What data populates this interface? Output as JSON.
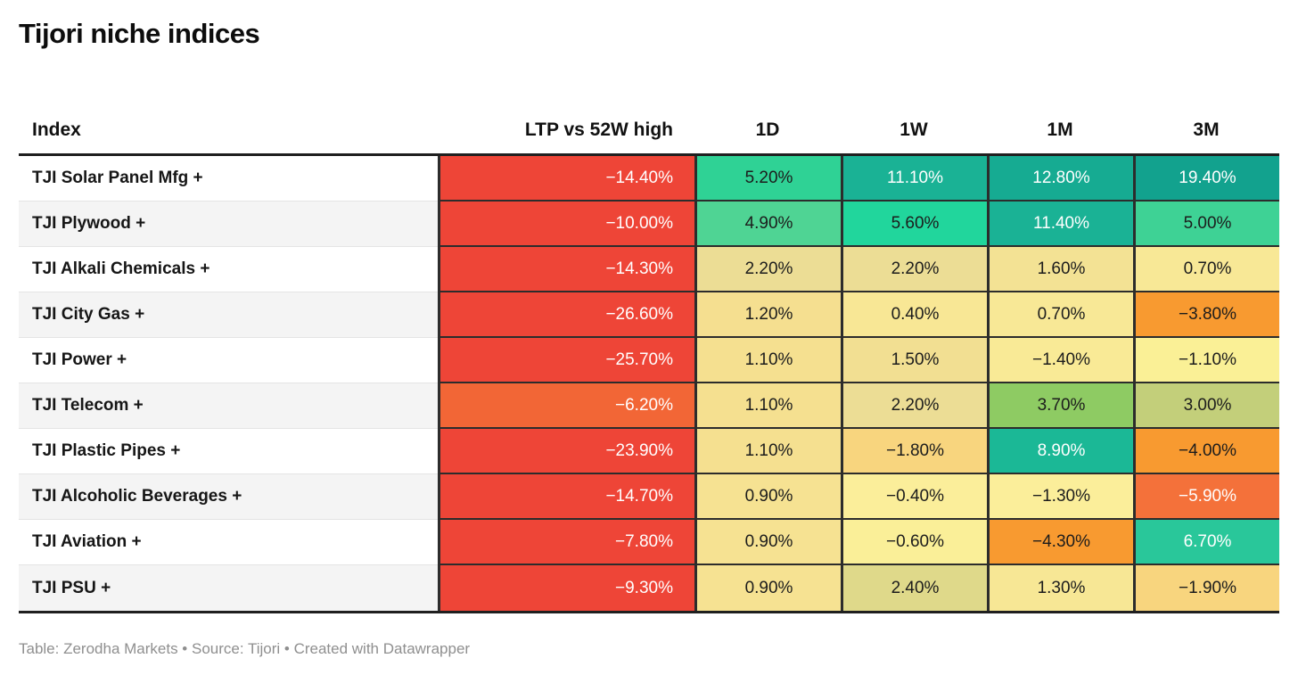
{
  "title": "Tijori niche indices",
  "footer": "Table: Zerodha Markets • Source: Tijori • Created with Datawrapper",
  "colors": {
    "strong_negative": "#ee4537",
    "negative": "#f26636",
    "mild_negative": "#f89a30",
    "neutral": "#f5e090",
    "positive": "#8ecb63",
    "strong_positive": "#1ab295",
    "border_dark": "#2c2c2c"
  },
  "chart_data": {
    "type": "table",
    "title": "Tijori niche indices",
    "columns": [
      "Index",
      "LTP vs 52W high",
      "1D",
      "1W",
      "1M",
      "3M"
    ],
    "header": {
      "index": "Index",
      "ltp": "LTP vs 52W high",
      "d1": "1D",
      "w1": "1W",
      "m1": "1M",
      "m3": "3M"
    },
    "rows": [
      {
        "index": "TJI Solar Panel Mfg +",
        "values": [
          -14.4,
          5.2,
          11.1,
          12.8,
          19.4
        ],
        "cells": [
          {
            "text": "−14.40%",
            "bg": "#ee4537",
            "fg": "#ffffff"
          },
          {
            "text": "5.20%",
            "bg": "#2fd295",
            "fg": "#1c1c1c"
          },
          {
            "text": "11.10%",
            "bg": "#1ab295",
            "fg": "#ffffff"
          },
          {
            "text": "12.80%",
            "bg": "#16ab92",
            "fg": "#ffffff"
          },
          {
            "text": "19.40%",
            "bg": "#12a28e",
            "fg": "#ffffff"
          }
        ]
      },
      {
        "index": "TJI Plywood +",
        "values": [
          -10.0,
          4.9,
          5.6,
          11.4,
          5.0
        ],
        "cells": [
          {
            "text": "−10.00%",
            "bg": "#ee4537",
            "fg": "#ffffff"
          },
          {
            "text": "4.90%",
            "bg": "#4fd494",
            "fg": "#1c1c1c"
          },
          {
            "text": "5.60%",
            "bg": "#21d69c",
            "fg": "#1c1c1c"
          },
          {
            "text": "11.40%",
            "bg": "#1ab295",
            "fg": "#ffffff"
          },
          {
            "text": "5.00%",
            "bg": "#3ed295",
            "fg": "#1c1c1c"
          }
        ]
      },
      {
        "index": "TJI Alkali Chemicals +",
        "values": [
          -14.3,
          2.2,
          2.2,
          1.6,
          0.7
        ],
        "cells": [
          {
            "text": "−14.30%",
            "bg": "#ee4537",
            "fg": "#ffffff"
          },
          {
            "text": "2.20%",
            "bg": "#ecdd95",
            "fg": "#1c1c1c"
          },
          {
            "text": "2.20%",
            "bg": "#ecdd95",
            "fg": "#1c1c1c"
          },
          {
            "text": "1.60%",
            "bg": "#f3e294",
            "fg": "#1c1c1c"
          },
          {
            "text": "0.70%",
            "bg": "#f8e896",
            "fg": "#1c1c1c"
          }
        ]
      },
      {
        "index": "TJI City Gas +",
        "values": [
          -26.6,
          1.2,
          0.4,
          0.7,
          -3.8
        ],
        "cells": [
          {
            "text": "−26.60%",
            "bg": "#ee4537",
            "fg": "#ffffff"
          },
          {
            "text": "1.20%",
            "bg": "#f5df90",
            "fg": "#1c1c1c"
          },
          {
            "text": "0.40%",
            "bg": "#f8e795",
            "fg": "#1c1c1c"
          },
          {
            "text": "0.70%",
            "bg": "#f8e896",
            "fg": "#1c1c1c"
          },
          {
            "text": "−3.80%",
            "bg": "#f89a30",
            "fg": "#1c1c1c"
          }
        ]
      },
      {
        "index": "TJI Power +",
        "values": [
          -25.7,
          1.1,
          1.5,
          -1.4,
          -1.1
        ],
        "cells": [
          {
            "text": "−25.70%",
            "bg": "#ee4537",
            "fg": "#ffffff"
          },
          {
            "text": "1.10%",
            "bg": "#f5e090",
            "fg": "#1c1c1c"
          },
          {
            "text": "1.50%",
            "bg": "#f2df92",
            "fg": "#1c1c1c"
          },
          {
            "text": "−1.40%",
            "bg": "#f9ea96",
            "fg": "#1c1c1c"
          },
          {
            "text": "−1.10%",
            "bg": "#faf096",
            "fg": "#1c1c1c"
          }
        ]
      },
      {
        "index": "TJI Telecom +",
        "values": [
          -6.2,
          1.1,
          2.2,
          3.7,
          3.0
        ],
        "cells": [
          {
            "text": "−6.20%",
            "bg": "#f26636",
            "fg": "#ffffff"
          },
          {
            "text": "1.10%",
            "bg": "#f5e090",
            "fg": "#1c1c1c"
          },
          {
            "text": "2.20%",
            "bg": "#ecdd95",
            "fg": "#1c1c1c"
          },
          {
            "text": "3.70%",
            "bg": "#8ecb63",
            "fg": "#1c1c1c"
          },
          {
            "text": "3.00%",
            "bg": "#c3cf7a",
            "fg": "#1c1c1c"
          }
        ]
      },
      {
        "index": "TJI Plastic Pipes +",
        "values": [
          -23.9,
          1.1,
          -1.8,
          8.9,
          -4.0
        ],
        "cells": [
          {
            "text": "−23.90%",
            "bg": "#ee4537",
            "fg": "#ffffff"
          },
          {
            "text": "1.10%",
            "bg": "#f5e090",
            "fg": "#1c1c1c"
          },
          {
            "text": "−1.80%",
            "bg": "#f8d57e",
            "fg": "#1c1c1c"
          },
          {
            "text": "8.90%",
            "bg": "#1bb896",
            "fg": "#ffffff"
          },
          {
            "text": "−4.00%",
            "bg": "#f89a30",
            "fg": "#1c1c1c"
          }
        ]
      },
      {
        "index": "TJI Alcoholic Beverages +",
        "values": [
          -14.7,
          0.9,
          -0.4,
          -1.3,
          -5.9
        ],
        "cells": [
          {
            "text": "−14.70%",
            "bg": "#ee4537",
            "fg": "#ffffff"
          },
          {
            "text": "0.90%",
            "bg": "#f6e292",
            "fg": "#1c1c1c"
          },
          {
            "text": "−0.40%",
            "bg": "#fbee9a",
            "fg": "#1c1c1c"
          },
          {
            "text": "−1.30%",
            "bg": "#fbee9a",
            "fg": "#1c1c1c"
          },
          {
            "text": "−5.90%",
            "bg": "#f4713a",
            "fg": "#ffffff"
          }
        ]
      },
      {
        "index": "TJI Aviation +",
        "values": [
          -7.8,
          0.9,
          -0.6,
          -4.3,
          6.7
        ],
        "cells": [
          {
            "text": "−7.80%",
            "bg": "#ee4537",
            "fg": "#ffffff"
          },
          {
            "text": "0.90%",
            "bg": "#f6e292",
            "fg": "#1c1c1c"
          },
          {
            "text": "−0.60%",
            "bg": "#faef98",
            "fg": "#1c1c1c"
          },
          {
            "text": "−4.30%",
            "bg": "#f89a30",
            "fg": "#1c1c1c"
          },
          {
            "text": "6.70%",
            "bg": "#29c79a",
            "fg": "#ffffff"
          }
        ]
      },
      {
        "index": "TJI PSU +",
        "values": [
          -9.3,
          0.9,
          2.4,
          1.3,
          -1.9
        ],
        "cells": [
          {
            "text": "−9.30%",
            "bg": "#ee4537",
            "fg": "#ffffff"
          },
          {
            "text": "0.90%",
            "bg": "#f6e292",
            "fg": "#1c1c1c"
          },
          {
            "text": "2.40%",
            "bg": "#dfd98a",
            "fg": "#1c1c1c"
          },
          {
            "text": "1.30%",
            "bg": "#f7e795",
            "fg": "#1c1c1c"
          },
          {
            "text": "−1.90%",
            "bg": "#f8d57e",
            "fg": "#1c1c1c"
          }
        ]
      }
    ]
  }
}
